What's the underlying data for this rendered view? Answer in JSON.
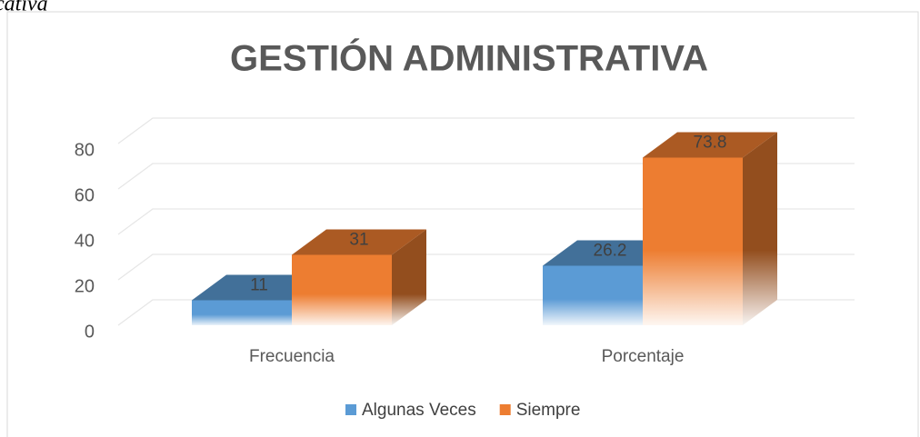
{
  "caption": "ucativa",
  "chart_data": {
    "type": "bar3d",
    "title": "GESTIÓN ADMINISTRATIVA",
    "categories": [
      "Frecuencia",
      "Porcentaje"
    ],
    "series": [
      {
        "name": "Algunas Veces",
        "color": "#5b9bd5",
        "values": [
          11,
          26.2
        ]
      },
      {
        "name": "Siempre",
        "color": "#ed7d31",
        "values": [
          31,
          73.8
        ]
      }
    ],
    "ylim": [
      0,
      80
    ],
    "yticks": [
      0,
      20,
      40,
      60,
      80
    ],
    "grid": true,
    "legend": "bottom"
  }
}
